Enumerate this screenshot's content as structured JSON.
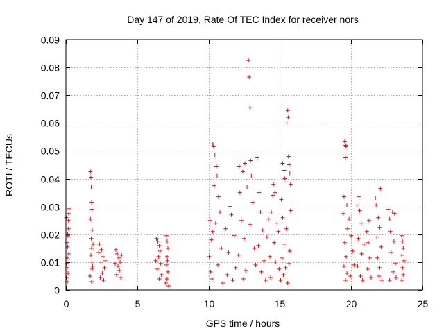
{
  "chart_data": {
    "type": "scatter",
    "title": "Day 147 of 2019, Rate Of TEC Index for receiver nors",
    "xlabel": "GPS time / hours",
    "ylabel": "ROTI / TECUs",
    "xlim": [
      0,
      25
    ],
    "ylim": [
      0,
      0.09
    ],
    "xticks": [
      0,
      5,
      10,
      15,
      20,
      25
    ],
    "xtick_labels": [
      "0",
      "5",
      "10",
      "15",
      "20",
      "25"
    ],
    "yticks": [
      0,
      0.01,
      0.02,
      0.03,
      0.04,
      0.05,
      0.06,
      0.07,
      0.08,
      0.09
    ],
    "ytick_labels": [
      "0",
      "0.01",
      "0.02",
      "0.03",
      "0.04",
      "0.05",
      "0.06",
      "0.07",
      "0.08",
      "0.09"
    ],
    "grid": true,
    "marker": "+",
    "color": "#ff0000",
    "series": [
      {
        "name": "ROTI",
        "points": [
          [
            0.05,
            0.0045
          ],
          [
            0.08,
            0.008
          ],
          [
            0.1,
            0.0115
          ],
          [
            0.12,
            0.0155
          ],
          [
            0.15,
            0.0195
          ],
          [
            0.18,
            0.025
          ],
          [
            0.2,
            0.0275
          ],
          [
            0.22,
            0.0292
          ],
          [
            0.1,
            0.003
          ],
          [
            0.15,
            0.006
          ],
          [
            0.05,
            0.0095
          ],
          [
            0.2,
            0.013
          ],
          [
            0.08,
            0.017
          ],
          [
            0.12,
            0.02
          ],
          [
            0.18,
            0.022
          ],
          [
            0.02,
            0.026
          ],
          [
            1.72,
            0.0425
          ],
          [
            1.75,
            0.0405
          ],
          [
            1.78,
            0.037
          ],
          [
            1.8,
            0.0315
          ],
          [
            1.82,
            0.029
          ],
          [
            1.72,
            0.0255
          ],
          [
            1.85,
            0.0215
          ],
          [
            1.78,
            0.0185
          ],
          [
            1.8,
            0.015
          ],
          [
            1.75,
            0.0125
          ],
          [
            1.82,
            0.01
          ],
          [
            1.85,
            0.0075
          ],
          [
            1.7,
            0.005
          ],
          [
            1.8,
            0.003
          ],
          [
            1.9,
            0.0165
          ],
          [
            1.88,
            0.0085
          ],
          [
            2.35,
            0.0165
          ],
          [
            2.5,
            0.0145
          ],
          [
            2.6,
            0.012
          ],
          [
            2.45,
            0.01
          ],
          [
            2.7,
            0.008
          ],
          [
            2.55,
            0.006
          ],
          [
            2.4,
            0.0045
          ],
          [
            2.65,
            0.0035
          ],
          [
            2.3,
            0.0135
          ],
          [
            2.75,
            0.0105
          ],
          [
            3.5,
            0.0145
          ],
          [
            3.6,
            0.013
          ],
          [
            3.7,
            0.0115
          ],
          [
            3.8,
            0.01
          ],
          [
            3.65,
            0.0085
          ],
          [
            3.75,
            0.007
          ],
          [
            3.55,
            0.0055
          ],
          [
            3.85,
            0.0045
          ],
          [
            3.9,
            0.0125
          ],
          [
            3.45,
            0.0095
          ],
          [
            6.35,
            0.0185
          ],
          [
            6.45,
            0.0175
          ],
          [
            6.55,
            0.016
          ],
          [
            6.6,
            0.014
          ],
          [
            6.5,
            0.012
          ],
          [
            6.65,
            0.0095
          ],
          [
            6.4,
            0.0075
          ],
          [
            6.7,
            0.0055
          ],
          [
            6.55,
            0.004
          ],
          [
            6.3,
            0.0105
          ],
          [
            7.05,
            0.0195
          ],
          [
            7.1,
            0.0175
          ],
          [
            7.15,
            0.015
          ],
          [
            7.1,
            0.012
          ],
          [
            7.05,
            0.009
          ],
          [
            7.15,
            0.0065
          ],
          [
            7.1,
            0.004
          ],
          [
            7.2,
            0.0015
          ],
          [
            7.0,
            0.0025
          ],
          [
            7.12,
            0.0105
          ],
          [
            10.3,
            0.0525
          ],
          [
            10.35,
            0.0515
          ],
          [
            10.45,
            0.0485
          ],
          [
            10.55,
            0.0445
          ],
          [
            10.6,
            0.041
          ],
          [
            10.4,
            0.0375
          ],
          [
            10.7,
            0.0335
          ],
          [
            10.8,
            0.028
          ],
          [
            10.5,
            0.024
          ],
          [
            10.3,
            0.021
          ],
          [
            10.1,
            0.025
          ],
          [
            10.2,
            0.018
          ],
          [
            10.9,
            0.015
          ],
          [
            10.05,
            0.012
          ],
          [
            11.5,
            0.03
          ],
          [
            10.65,
            0.009
          ],
          [
            10.15,
            0.0065
          ],
          [
            10.25,
            0.004
          ],
          [
            11.0,
            0.0025
          ],
          [
            11.2,
            0.022
          ],
          [
            11.6,
            0.027
          ],
          [
            11.8,
            0.0195
          ],
          [
            11.4,
            0.0135
          ],
          [
            11.9,
            0.008
          ],
          [
            11.3,
            0.0055
          ],
          [
            11.7,
            0.0035
          ],
          [
            12.15,
            0.0445
          ],
          [
            12.55,
            0.0455
          ],
          [
            12.8,
            0.0825
          ],
          [
            12.85,
            0.0765
          ],
          [
            12.9,
            0.0655
          ],
          [
            12.95,
            0.0465
          ],
          [
            12.4,
            0.0425
          ],
          [
            12.2,
            0.035
          ],
          [
            12.7,
            0.037
          ],
          [
            13.0,
            0.041
          ],
          [
            12.3,
            0.025
          ],
          [
            12.5,
            0.0185
          ],
          [
            12.1,
            0.0125
          ],
          [
            12.6,
            0.007
          ],
          [
            12.45,
            0.004
          ],
          [
            12.9,
            0.0235
          ],
          [
            13.1,
            0.0315
          ],
          [
            13.2,
            0.015
          ],
          [
            13.3,
            0.009
          ],
          [
            13.4,
            0.0475
          ],
          [
            13.55,
            0.035
          ],
          [
            13.65,
            0.028
          ],
          [
            13.8,
            0.0215
          ],
          [
            13.5,
            0.016
          ],
          [
            13.9,
            0.0105
          ],
          [
            13.7,
            0.0065
          ],
          [
            14.0,
            0.0035
          ],
          [
            14.1,
            0.019
          ],
          [
            14.2,
            0.0255
          ],
          [
            14.3,
            0.012
          ],
          [
            14.5,
            0.034
          ],
          [
            14.4,
            0.028
          ],
          [
            14.6,
            0.017
          ],
          [
            14.7,
            0.01
          ],
          [
            14.35,
            0.0045
          ],
          [
            14.8,
            0.024
          ],
          [
            14.9,
            0.021
          ],
          [
            14.65,
            0.035
          ],
          [
            14.55,
            0.038
          ],
          [
            14.95,
            0.0075
          ],
          [
            15.2,
            0.0455
          ],
          [
            15.3,
            0.043
          ],
          [
            15.35,
            0.04
          ],
          [
            15.55,
            0.0645
          ],
          [
            15.58,
            0.062
          ],
          [
            15.5,
            0.06
          ],
          [
            15.6,
            0.048
          ],
          [
            15.65,
            0.045
          ],
          [
            15.7,
            0.042
          ],
          [
            15.75,
            0.038
          ],
          [
            15.1,
            0.0325
          ],
          [
            15.2,
            0.026
          ],
          [
            15.45,
            0.022
          ],
          [
            15.3,
            0.0165
          ],
          [
            15.15,
            0.0115
          ],
          [
            15.4,
            0.008
          ],
          [
            15.25,
            0.0055
          ],
          [
            15.05,
            0.0035
          ],
          [
            15.55,
            0.0025
          ],
          [
            15.7,
            0.014
          ],
          [
            15.75,
            0.0285
          ],
          [
            15.65,
            0.0095
          ],
          [
            19.55,
            0.0535
          ],
          [
            19.6,
            0.052
          ],
          [
            19.65,
            0.0515
          ],
          [
            19.6,
            0.0475
          ],
          [
            19.5,
            0.0335
          ],
          [
            19.7,
            0.0305
          ],
          [
            19.45,
            0.0275
          ],
          [
            19.75,
            0.022
          ],
          [
            19.55,
            0.017
          ],
          [
            19.65,
            0.012
          ],
          [
            19.5,
            0.0085
          ],
          [
            19.7,
            0.006
          ],
          [
            19.6,
            0.0035
          ],
          [
            19.85,
            0.0255
          ],
          [
            20.0,
            0.0195
          ],
          [
            20.1,
            0.014
          ],
          [
            20.2,
            0.009
          ],
          [
            19.95,
            0.005
          ],
          [
            20.4,
            0.0305
          ],
          [
            20.55,
            0.0335
          ],
          [
            20.6,
            0.0285
          ],
          [
            20.7,
            0.024
          ],
          [
            20.5,
            0.0185
          ],
          [
            20.75,
            0.013
          ],
          [
            20.45,
            0.0085
          ],
          [
            20.65,
            0.005
          ],
          [
            20.8,
            0.0035
          ],
          [
            20.9,
            0.0165
          ],
          [
            21.1,
            0.021
          ],
          [
            21.2,
            0.017
          ],
          [
            21.3,
            0.0115
          ],
          [
            21.15,
            0.0075
          ],
          [
            21.4,
            0.0045
          ],
          [
            21.25,
            0.025
          ],
          [
            21.7,
            0.033
          ],
          [
            21.75,
            0.0305
          ],
          [
            22.05,
            0.0365
          ],
          [
            21.9,
            0.026
          ],
          [
            22.0,
            0.0225
          ],
          [
            21.8,
            0.019
          ],
          [
            22.1,
            0.0155
          ],
          [
            21.85,
            0.0115
          ],
          [
            22.0,
            0.008
          ],
          [
            21.95,
            0.005
          ],
          [
            22.15,
            0.0035
          ],
          [
            22.6,
            0.029
          ],
          [
            22.7,
            0.0255
          ],
          [
            22.9,
            0.028
          ],
          [
            23.05,
            0.0275
          ],
          [
            22.75,
            0.021
          ],
          [
            23.0,
            0.0175
          ],
          [
            22.8,
            0.0135
          ],
          [
            23.1,
            0.0095
          ],
          [
            22.95,
            0.0065
          ],
          [
            22.7,
            0.0035
          ],
          [
            23.15,
            0.0045
          ],
          [
            23.55,
            0.0195
          ],
          [
            23.6,
            0.0175
          ],
          [
            23.65,
            0.015
          ],
          [
            23.55,
            0.0125
          ],
          [
            23.7,
            0.0105
          ],
          [
            23.6,
            0.008
          ],
          [
            23.65,
            0.0055
          ],
          [
            23.55,
            0.0035
          ]
        ]
      }
    ]
  }
}
